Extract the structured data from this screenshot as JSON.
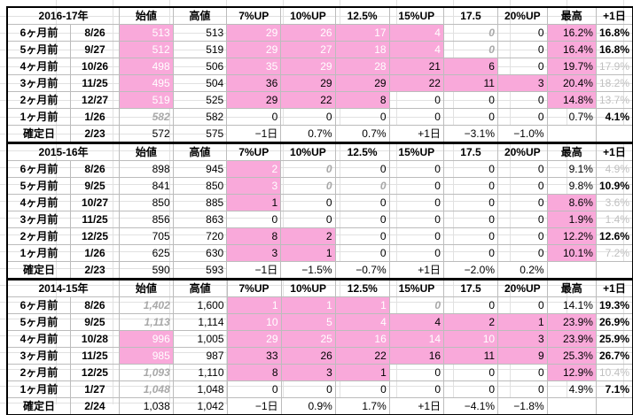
{
  "colors": {
    "pink": "#f9a9da",
    "grey_text": "#c0c0c0",
    "grid": "#e1e1e1"
  },
  "blocks": [
    {
      "title": "2016-17年",
      "headers": [
        "始値",
        "高値",
        "7%UP",
        "10%UP",
        "12.5%",
        "15%UP",
        "17.5",
        "20%UP",
        "最高",
        "+1日"
      ],
      "rows": [
        {
          "label": "6ヶ月前",
          "date": "8/26",
          "cells": [
            {
              "v": "513",
              "s": "pk"
            },
            {
              "v": "513"
            },
            {
              "v": "29",
              "s": "pk"
            },
            {
              "v": "26",
              "s": "pk"
            },
            {
              "v": "17",
              "s": "pk"
            },
            {
              "v": "4",
              "s": "pk"
            },
            {
              "v": "0",
              "s": "it"
            },
            {
              "v": "0"
            },
            {
              "v": "16.2%",
              "s": "pk dk"
            },
            {
              "v": "16.8%",
              "s": "bd"
            }
          ]
        },
        {
          "label": "5ヶ月前",
          "date": "9/27",
          "cells": [
            {
              "v": "512",
              "s": "pk"
            },
            {
              "v": "519"
            },
            {
              "v": "29",
              "s": "pk"
            },
            {
              "v": "27",
              "s": "pk"
            },
            {
              "v": "18",
              "s": "pk"
            },
            {
              "v": "4",
              "s": "pk"
            },
            {
              "v": "0",
              "s": "it"
            },
            {
              "v": "0"
            },
            {
              "v": "16.4%",
              "s": "pk dk"
            },
            {
              "v": "16.8%",
              "s": "bd"
            }
          ]
        },
        {
          "label": "4ヶ月前",
          "date": "10/26",
          "cells": [
            {
              "v": "498",
              "s": "pk"
            },
            {
              "v": "506"
            },
            {
              "v": "35",
              "s": "pk"
            },
            {
              "v": "29",
              "s": "pk"
            },
            {
              "v": "28",
              "s": "pk"
            },
            {
              "v": "21",
              "s": "pk dk"
            },
            {
              "v": "6",
              "s": "pk dk"
            },
            {
              "v": "0"
            },
            {
              "v": "19.7%",
              "s": "pk dk"
            },
            {
              "v": "17.9%",
              "s": "gr"
            }
          ]
        },
        {
          "label": "3ヶ月前",
          "date": "11/25",
          "cells": [
            {
              "v": "495",
              "s": "pk"
            },
            {
              "v": "504"
            },
            {
              "v": "36",
              "s": "pk dk"
            },
            {
              "v": "29",
              "s": "pk dk"
            },
            {
              "v": "29",
              "s": "pk dk"
            },
            {
              "v": "22",
              "s": "pk dk"
            },
            {
              "v": "11",
              "s": "pk dk"
            },
            {
              "v": "3",
              "s": "pk dk"
            },
            {
              "v": "20.4%",
              "s": "pk dk"
            },
            {
              "v": "18.2%",
              "s": "gr"
            }
          ]
        },
        {
          "label": "2ヶ月前",
          "date": "12/27",
          "cells": [
            {
              "v": "519",
              "s": "pk"
            },
            {
              "v": "525"
            },
            {
              "v": "29",
              "s": "pk dk"
            },
            {
              "v": "22",
              "s": "pk dk"
            },
            {
              "v": "8",
              "s": "pk dk"
            },
            {
              "v": "0"
            },
            {
              "v": "0"
            },
            {
              "v": "0"
            },
            {
              "v": "14.8%",
              "s": "pk dk"
            },
            {
              "v": "13.7%",
              "s": "gr"
            }
          ]
        },
        {
          "label": "1ヶ月前",
          "date": "1/26",
          "cells": [
            {
              "v": "582",
              "s": "it"
            },
            {
              "v": "582"
            },
            {
              "v": "0"
            },
            {
              "v": "0"
            },
            {
              "v": "0"
            },
            {
              "v": "0"
            },
            {
              "v": "0"
            },
            {
              "v": "0"
            },
            {
              "v": "0.7%"
            },
            {
              "v": "4.1%",
              "s": "bd"
            }
          ]
        }
      ],
      "final": {
        "label": "確定日",
        "date": "2/23",
        "cells": [
          "572",
          "575",
          "−1日",
          "0.7%",
          "0.7%",
          "+1日",
          "−3.1%",
          "−1.0%"
        ]
      }
    },
    {
      "title": "2015-16年",
      "headers": [
        "始値",
        "高値",
        "7%UP",
        "10%UP",
        "12.5%",
        "15%UP",
        "17.5",
        "20%UP",
        "最高",
        "+1日"
      ],
      "rows": [
        {
          "label": "6ヶ月前",
          "date": "8/26",
          "cells": [
            {
              "v": "898"
            },
            {
              "v": "945"
            },
            {
              "v": "2",
              "s": "pk"
            },
            {
              "v": "0",
              "s": "it"
            },
            {
              "v": "0"
            },
            {
              "v": "0"
            },
            {
              "v": "0"
            },
            {
              "v": "0"
            },
            {
              "v": "9.1%"
            },
            {
              "v": "4.9%",
              "s": "gr"
            }
          ]
        },
        {
          "label": "5ヶ月前",
          "date": "9/25",
          "cells": [
            {
              "v": "841"
            },
            {
              "v": "850"
            },
            {
              "v": "3",
              "s": "pk"
            },
            {
              "v": "0",
              "s": "it"
            },
            {
              "v": "0",
              "s": "it"
            },
            {
              "v": "0"
            },
            {
              "v": "0"
            },
            {
              "v": "0"
            },
            {
              "v": "9.8%"
            },
            {
              "v": "10.9%",
              "s": "bd"
            }
          ]
        },
        {
          "label": "4ヶ月前",
          "date": "10/27",
          "cells": [
            {
              "v": "850"
            },
            {
              "v": "885"
            },
            {
              "v": "1",
              "s": "pk dk"
            },
            {
              "v": "0"
            },
            {
              "v": "0"
            },
            {
              "v": "0"
            },
            {
              "v": "0"
            },
            {
              "v": "0"
            },
            {
              "v": "8.6%",
              "s": "pk dk"
            },
            {
              "v": "3.6%",
              "s": "gr"
            }
          ]
        },
        {
          "label": "3ヶ月前",
          "date": "11/25",
          "cells": [
            {
              "v": "856"
            },
            {
              "v": "863"
            },
            {
              "v": "0"
            },
            {
              "v": "0"
            },
            {
              "v": "0"
            },
            {
              "v": "0"
            },
            {
              "v": "0"
            },
            {
              "v": "0"
            },
            {
              "v": "1.9%",
              "s": "pk dk"
            },
            {
              "v": "1.4%",
              "s": "gr"
            }
          ]
        },
        {
          "label": "2ヶ月前",
          "date": "12/25",
          "cells": [
            {
              "v": "705"
            },
            {
              "v": "720"
            },
            {
              "v": "8",
              "s": "pk dk"
            },
            {
              "v": "2",
              "s": "pk dk"
            },
            {
              "v": "0"
            },
            {
              "v": "0"
            },
            {
              "v": "0"
            },
            {
              "v": "0"
            },
            {
              "v": "12.2%",
              "s": "pk dk"
            },
            {
              "v": "12.6%",
              "s": "bd"
            }
          ]
        },
        {
          "label": "1ヶ月前",
          "date": "1/26",
          "cells": [
            {
              "v": "625"
            },
            {
              "v": "630"
            },
            {
              "v": "3",
              "s": "pk dk"
            },
            {
              "v": "1",
              "s": "pk dk"
            },
            {
              "v": "0"
            },
            {
              "v": "0"
            },
            {
              "v": "0"
            },
            {
              "v": "0"
            },
            {
              "v": "10.1%",
              "s": "pk dk"
            },
            {
              "v": "7.2%",
              "s": "gr"
            }
          ]
        }
      ],
      "final": {
        "label": "確定日",
        "date": "2/23",
        "cells": [
          "590",
          "593",
          "−1日",
          "−1.5%",
          "−0.7%",
          "+1日",
          "−2.0%",
          "0.2%"
        ]
      }
    },
    {
      "title": "2014-15年",
      "headers": [
        "始値",
        "高値",
        "7%UP",
        "10%UP",
        "12.5%",
        "15%UP",
        "17.5",
        "20%UP",
        "最高",
        "+1日"
      ],
      "rows": [
        {
          "label": "6ヶ月前",
          "date": "8/26",
          "cells": [
            {
              "v": "1,402",
              "s": "it"
            },
            {
              "v": "1,600"
            },
            {
              "v": "1",
              "s": "pk"
            },
            {
              "v": "1",
              "s": "pk"
            },
            {
              "v": "1",
              "s": "pk"
            },
            {
              "v": "0",
              "s": "it"
            },
            {
              "v": "0"
            },
            {
              "v": "0"
            },
            {
              "v": "14.1%"
            },
            {
              "v": "19.3%",
              "s": "bd"
            }
          ]
        },
        {
          "label": "5ヶ月前",
          "date": "9/25",
          "cells": [
            {
              "v": "1,113",
              "s": "it"
            },
            {
              "v": "1,114"
            },
            {
              "v": "10",
              "s": "pk"
            },
            {
              "v": "5",
              "s": "pk"
            },
            {
              "v": "4",
              "s": "pk"
            },
            {
              "v": "4",
              "s": "pk dk"
            },
            {
              "v": "2",
              "s": "pk dk"
            },
            {
              "v": "1",
              "s": "pk dk"
            },
            {
              "v": "23.9%",
              "s": "pk dk"
            },
            {
              "v": "26.9%",
              "s": "bd"
            }
          ]
        },
        {
          "label": "4ヶ月前",
          "date": "10/28",
          "cells": [
            {
              "v": "996",
              "s": "pk"
            },
            {
              "v": "1,005"
            },
            {
              "v": "29",
              "s": "pk"
            },
            {
              "v": "25",
              "s": "pk"
            },
            {
              "v": "16",
              "s": "pk"
            },
            {
              "v": "14",
              "s": "pk"
            },
            {
              "v": "10",
              "s": "pk"
            },
            {
              "v": "3",
              "s": "pk dk"
            },
            {
              "v": "23.9%",
              "s": "pk dk"
            },
            {
              "v": "25.9%",
              "s": "bd"
            }
          ]
        },
        {
          "label": "3ヶ月前",
          "date": "11/25",
          "cells": [
            {
              "v": "985",
              "s": "pk"
            },
            {
              "v": "987"
            },
            {
              "v": "33",
              "s": "pk dk"
            },
            {
              "v": "26",
              "s": "pk dk"
            },
            {
              "v": "22",
              "s": "pk dk"
            },
            {
              "v": "16",
              "s": "pk dk"
            },
            {
              "v": "11",
              "s": "pk dk"
            },
            {
              "v": "9",
              "s": "pk dk"
            },
            {
              "v": "25.3%",
              "s": "pk dk"
            },
            {
              "v": "26.7%",
              "s": "bd"
            }
          ]
        },
        {
          "label": "2ヶ月前",
          "date": "12/25",
          "cells": [
            {
              "v": "1,093",
              "s": "it"
            },
            {
              "v": "1,110"
            },
            {
              "v": "8",
              "s": "pk dk"
            },
            {
              "v": "3",
              "s": "pk dk"
            },
            {
              "v": "1",
              "s": "pk dk"
            },
            {
              "v": "0"
            },
            {
              "v": "0"
            },
            {
              "v": "0"
            },
            {
              "v": "12.9%",
              "s": "pk dk"
            },
            {
              "v": "10.4%",
              "s": "gr"
            }
          ]
        },
        {
          "label": "1ヶ月前",
          "date": "1/27",
          "cells": [
            {
              "v": "1,048",
              "s": "it"
            },
            {
              "v": "1,048"
            },
            {
              "v": "0"
            },
            {
              "v": "0"
            },
            {
              "v": "0"
            },
            {
              "v": "0"
            },
            {
              "v": "0"
            },
            {
              "v": "0"
            },
            {
              "v": "4.9%"
            },
            {
              "v": "7.1%",
              "s": "bd"
            }
          ]
        }
      ],
      "final": {
        "label": "確定日",
        "date": "2/24",
        "cells": [
          "1,038",
          "1,042",
          "−1日",
          "0.9%",
          "1.7%",
          "+1日",
          "−4.1%",
          "−1.8%"
        ]
      }
    }
  ]
}
